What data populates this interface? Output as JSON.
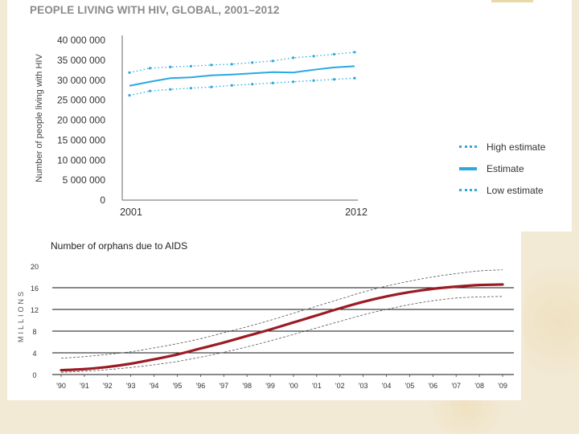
{
  "top_chart": {
    "title": "PEOPLE LIVING WITH HIV, GLOBAL, 2001–2012",
    "ylabel": "Number of people living with HIV",
    "x_tick_labels": [
      "2001",
      "2012"
    ],
    "y_tick_labels": [
      "40 000 000",
      "35 000 000",
      "30 000 000",
      "25 000 000",
      "20 000 000",
      "15 000 000",
      "10 000 000",
      "5 000 000",
      "0"
    ],
    "legend": {
      "high": "High estimate",
      "estimate": "Estimate",
      "low": "Low estimate"
    }
  },
  "bottom_chart": {
    "title": "Number of orphans due to AIDS",
    "unit_label": "MILLIONS",
    "x_tick_labels": [
      "'90",
      "'91",
      "'92",
      "'93",
      "'94",
      "'95",
      "'96",
      "'97",
      "'98",
      "'99",
      "'00",
      "'01",
      "'02",
      "'03",
      "'04",
      "'05",
      "'06",
      "'07",
      "'08",
      "'09"
    ],
    "y_tick_labels": [
      "20",
      "16",
      "12",
      "8",
      "4",
      "0"
    ]
  },
  "colors": {
    "hiv_line": "#29a9e0",
    "orphans_line": "#9b1b23",
    "gridline": "#111111",
    "axis_gray": "#9a9a9a"
  },
  "chart_data": [
    {
      "type": "line",
      "title": "PEOPLE LIVING WITH HIV, GLOBAL, 2001–2012",
      "ylabel": "Number of people living with HIV",
      "xlabel": "",
      "x": [
        2001,
        2002,
        2003,
        2004,
        2005,
        2006,
        2007,
        2008,
        2009,
        2010,
        2011,
        2012
      ],
      "ylim": [
        0,
        40000000
      ],
      "series": [
        {
          "name": "High estimate",
          "style": "dotted",
          "values": [
            31900000,
            33000000,
            33300000,
            33500000,
            33800000,
            34000000,
            34400000,
            34800000,
            35600000,
            36000000,
            36500000,
            37000000
          ]
        },
        {
          "name": "Estimate",
          "style": "solid",
          "values": [
            28600000,
            29600000,
            30500000,
            30700000,
            31200000,
            31400000,
            31700000,
            32000000,
            31900000,
            32600000,
            33200000,
            33500000
          ]
        },
        {
          "name": "Low estimate",
          "style": "dotted",
          "values": [
            26200000,
            27300000,
            27700000,
            28000000,
            28300000,
            28700000,
            29000000,
            29300000,
            29600000,
            29900000,
            30200000,
            30500000
          ]
        }
      ],
      "legend_position": "right"
    },
    {
      "type": "line",
      "title": "Number of orphans due to AIDS",
      "ylabel": "MILLIONS",
      "xlabel": "",
      "x": [
        "'90",
        "'91",
        "'92",
        "'93",
        "'94",
        "'95",
        "'96",
        "'97",
        "'98",
        "'99",
        "'00",
        "'01",
        "'02",
        "'03",
        "'04",
        "'05",
        "'06",
        "'07",
        "'08",
        "'09"
      ],
      "ylim": [
        0,
        20
      ],
      "grid": true,
      "series": [
        {
          "style": "solid",
          "values": [
            0.8,
            1.0,
            1.4,
            2.0,
            2.8,
            3.7,
            4.8,
            5.9,
            7.1,
            8.3,
            9.6,
            10.9,
            12.2,
            13.4,
            14.4,
            15.2,
            15.8,
            16.2,
            16.5,
            16.6
          ]
        },
        {
          "style": "dashed",
          "values": [
            3.0,
            3.3,
            3.7,
            4.2,
            4.9,
            5.7,
            6.6,
            7.7,
            8.8,
            10.0,
            11.3,
            12.6,
            13.9,
            15.2,
            16.3,
            17.2,
            18.0,
            18.6,
            19.1,
            19.3
          ]
        },
        {
          "style": "dashed",
          "values": [
            0.4,
            0.6,
            0.9,
            1.3,
            1.8,
            2.4,
            3.2,
            4.1,
            5.1,
            6.2,
            7.4,
            8.6,
            9.8,
            11.0,
            12.0,
            12.9,
            13.6,
            14.1,
            14.3,
            14.4
          ]
        }
      ]
    }
  ]
}
